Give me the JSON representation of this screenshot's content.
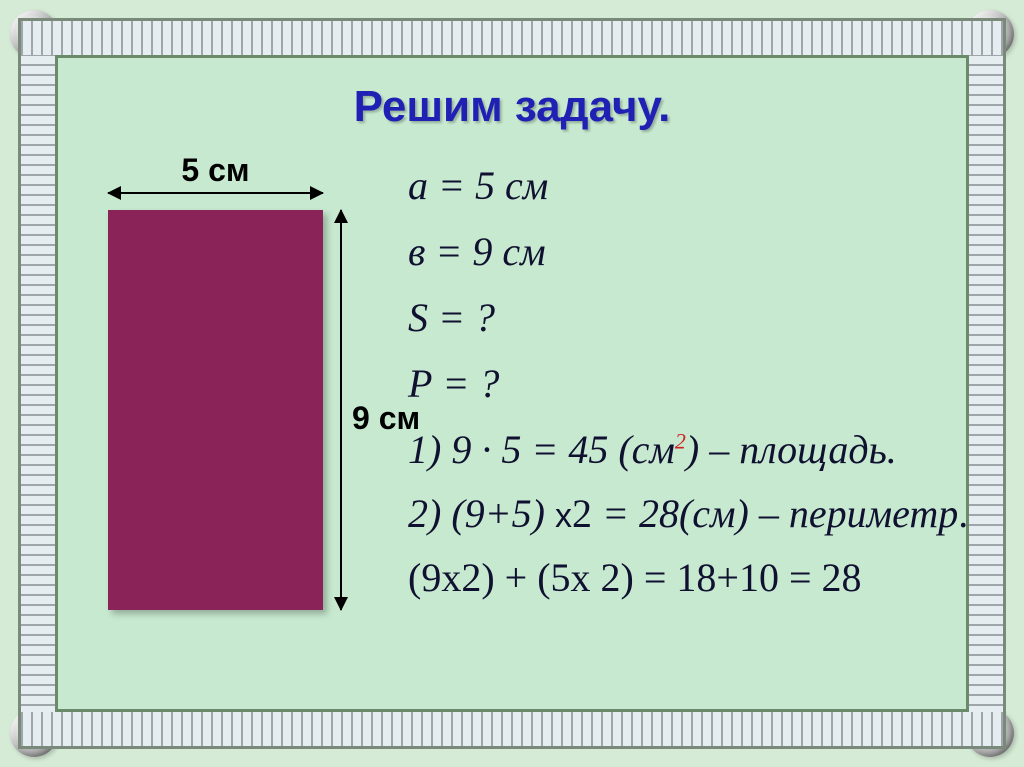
{
  "title": "Решим задачу.",
  "figure": {
    "width_label": "5 см",
    "height_label": "9 см",
    "rect_color": "#8a2358",
    "width_cm": 5,
    "height_cm": 9
  },
  "given": {
    "a": "а = 5 см",
    "b": "в = 9 см",
    "S": "S = ?",
    "P": "Р = ?"
  },
  "steps": {
    "s1_prefix": "1) 9 · 5 = 45 (см",
    "s1_exp": "2",
    "s1_suffix": ") – площадь.",
    "s2_prefix": "2) (9+5) ",
    "s2_x": "х",
    "s2_two": "2 ",
    "s2_mid": "= 28(см) – периметр",
    "s2_dot": ".",
    "s3": "(9х2) + (5х 2) = 18+10 = 28"
  },
  "style": {
    "title_color": "#2020b5",
    "panel_bg": "#c6e9cf",
    "outer_bg": "#d5ebd5",
    "text_color": "#101030",
    "red": "#d02020",
    "title_fontsize": 44,
    "math_fontsize": 40,
    "label_fontsize": 32
  }
}
